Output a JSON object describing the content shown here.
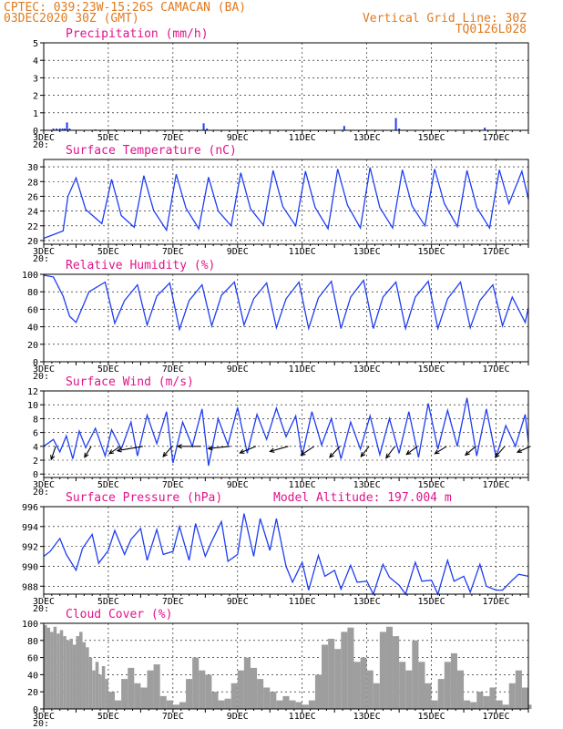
{
  "header": {
    "line1": "CPTEC:   039:23W-15:26S   CAMACAN (BA)",
    "line2": "03DEC2020 30Z (GMT)",
    "right1": "Vertical Grid Line: 30Z",
    "right2": "TQ0126L028"
  },
  "x_axis": {
    "tick_labels": [
      "3DEC",
      "5DEC",
      "7DEC",
      "9DEC",
      "11DEC",
      "13DEC",
      "15DEC",
      "17DEC"
    ],
    "stub_label": "20:",
    "range_days": [
      3.0,
      18.0
    ]
  },
  "chart_data": [
    {
      "id": "precip",
      "type": "bar",
      "title": "Precipitation (mm/h)",
      "ylim": [
        0,
        5
      ],
      "yticks": [
        0,
        1,
        2,
        3,
        4,
        5
      ],
      "grid": true,
      "color": "#1f3ef2",
      "x_unit": "days of December 2020",
      "bars": [
        {
          "x": 3.3,
          "value": 0.1
        },
        {
          "x": 3.4,
          "value": 0.1
        },
        {
          "x": 3.5,
          "value": 0.1
        },
        {
          "x": 3.58,
          "value": 0.1
        },
        {
          "x": 3.65,
          "value": 0.1
        },
        {
          "x": 3.72,
          "value": 0.45
        },
        {
          "x": 3.8,
          "value": 0.1
        },
        {
          "x": 4.6,
          "value": 0.05
        },
        {
          "x": 5.2,
          "value": 0.05
        },
        {
          "x": 7.95,
          "value": 0.4
        },
        {
          "x": 8.05,
          "value": 0.1
        },
        {
          "x": 12.3,
          "value": 0.25
        },
        {
          "x": 13.9,
          "value": 0.7
        },
        {
          "x": 14.0,
          "value": 0.1
        },
        {
          "x": 16.65,
          "value": 0.15
        }
      ]
    },
    {
      "id": "temperature",
      "type": "line",
      "title": "Surface Temperature (nC)",
      "ylim": [
        19.5,
        31
      ],
      "yticks": [
        20,
        22,
        24,
        26,
        28,
        30
      ],
      "grid": true,
      "color": "#1f3ef2",
      "x": [
        3.0,
        3.3,
        3.6,
        3.75,
        4.0,
        4.3,
        4.8,
        5.1,
        5.4,
        5.8,
        6.1,
        6.4,
        6.8,
        7.1,
        7.4,
        7.8,
        8.1,
        8.4,
        8.8,
        9.1,
        9.4,
        9.8,
        10.1,
        10.4,
        10.8,
        11.1,
        11.4,
        11.8,
        12.1,
        12.4,
        12.8,
        13.1,
        13.4,
        13.8,
        14.1,
        14.4,
        14.8,
        15.1,
        15.4,
        15.8,
        16.1,
        16.4,
        16.8,
        17.1,
        17.4,
        17.8,
        18.0
      ],
      "y": [
        20.3,
        20.8,
        21.3,
        26.0,
        28.5,
        24.2,
        22.3,
        28.3,
        23.4,
        21.8,
        28.8,
        24.1,
        21.4,
        29.0,
        24.4,
        21.6,
        28.6,
        24.0,
        22.0,
        29.2,
        24.3,
        22.1,
        29.5,
        24.6,
        22.0,
        29.4,
        24.5,
        21.6,
        29.7,
        24.8,
        21.7,
        29.9,
        24.5,
        21.7,
        29.6,
        24.7,
        22.0,
        29.7,
        25.0,
        21.9,
        29.5,
        24.5,
        21.7,
        29.6,
        25.0,
        29.4,
        25.6
      ]
    },
    {
      "id": "humidity",
      "type": "line",
      "title": "Relative Humidity (%)",
      "ylim": [
        0,
        100
      ],
      "yticks": [
        0,
        20,
        40,
        60,
        80,
        100
      ],
      "grid": true,
      "color": "#1f3ef2",
      "x": [
        3.0,
        3.3,
        3.6,
        3.8,
        4.0,
        4.4,
        4.9,
        5.2,
        5.5,
        5.9,
        6.2,
        6.5,
        6.9,
        7.2,
        7.5,
        7.9,
        8.2,
        8.5,
        8.9,
        9.2,
        9.5,
        9.9,
        10.2,
        10.5,
        10.9,
        11.2,
        11.5,
        11.9,
        12.2,
        12.5,
        12.9,
        13.2,
        13.5,
        13.9,
        14.2,
        14.5,
        14.9,
        15.2,
        15.5,
        15.9,
        16.2,
        16.5,
        16.9,
        17.2,
        17.5,
        17.9,
        18.0
      ],
      "y": [
        99,
        97,
        75,
        52,
        45,
        80,
        91,
        44,
        70,
        88,
        42,
        75,
        90,
        37,
        70,
        88,
        41,
        76,
        91,
        42,
        72,
        90,
        39,
        72,
        91,
        38,
        73,
        92,
        38,
        74,
        93,
        38,
        74,
        91,
        38,
        74,
        92,
        38,
        72,
        91,
        39,
        70,
        88,
        41,
        74,
        45,
        62
      ]
    },
    {
      "id": "wind",
      "type": "line",
      "title": "Surface Wind (m/s)",
      "ylim": [
        -0.5,
        12
      ],
      "yticks": [
        0,
        2,
        4,
        6,
        8,
        10,
        12
      ],
      "grid": true,
      "color": "#1f3ef2",
      "x": [
        3.0,
        3.3,
        3.5,
        3.7,
        3.9,
        4.1,
        4.3,
        4.6,
        4.9,
        5.1,
        5.4,
        5.7,
        5.9,
        6.2,
        6.5,
        6.8,
        7.0,
        7.3,
        7.6,
        7.9,
        8.1,
        8.4,
        8.7,
        9.0,
        9.3,
        9.6,
        9.9,
        10.2,
        10.5,
        10.8,
        11.0,
        11.3,
        11.6,
        11.9,
        12.2,
        12.5,
        12.8,
        13.1,
        13.4,
        13.7,
        14.0,
        14.3,
        14.6,
        14.9,
        15.2,
        15.5,
        15.8,
        16.1,
        16.4,
        16.7,
        17.0,
        17.3,
        17.6,
        17.9,
        18.0
      ],
      "y": [
        4.0,
        5.0,
        3.2,
        5.5,
        2.2,
        6.2,
        3.8,
        6.6,
        2.6,
        6.4,
        3.6,
        7.5,
        2.6,
        8.5,
        4.4,
        9.0,
        1.6,
        7.5,
        4.0,
        9.4,
        1.2,
        8.0,
        4.2,
        9.6,
        3.0,
        8.6,
        5.0,
        9.5,
        5.4,
        8.4,
        2.6,
        9.0,
        4.2,
        8.0,
        2.2,
        7.5,
        3.6,
        8.4,
        2.8,
        8.0,
        3.0,
        9.0,
        2.4,
        10.2,
        3.6,
        9.2,
        4.0,
        11.0,
        2.6,
        9.4,
        2.4,
        7.0,
        4.0,
        8.6,
        4.6
      ],
      "arrows": [
        {
          "x": 3.2,
          "u": -0.6,
          "v": -1.8
        },
        {
          "x": 4.3,
          "u": -0.9,
          "v": -1.5
        },
        {
          "x": 5.2,
          "u": -1.5,
          "v": -1.0
        },
        {
          "x": 5.9,
          "u": -3.5,
          "v": -0.6
        },
        {
          "x": 6.8,
          "u": -1.2,
          "v": -1.4
        },
        {
          "x": 7.7,
          "u": -3.2,
          "v": 0.0
        },
        {
          "x": 8.6,
          "u": -3.0,
          "v": -0.3
        },
        {
          "x": 9.4,
          "u": -2.2,
          "v": -0.9
        },
        {
          "x": 10.4,
          "u": -2.5,
          "v": -0.7
        },
        {
          "x": 11.2,
          "u": -1.8,
          "v": -1.2
        },
        {
          "x": 12.0,
          "u": -1.4,
          "v": -1.5
        },
        {
          "x": 12.9,
          "u": -1.1,
          "v": -1.4
        },
        {
          "x": 13.7,
          "u": -1.2,
          "v": -1.6
        },
        {
          "x": 14.4,
          "u": -1.5,
          "v": -1.1
        },
        {
          "x": 15.3,
          "u": -1.6,
          "v": -1.0
        },
        {
          "x": 16.2,
          "u": -1.4,
          "v": -1.2
        },
        {
          "x": 17.1,
          "u": -1.3,
          "v": -1.5
        },
        {
          "x": 17.9,
          "u": -1.8,
          "v": -0.8
        }
      ]
    },
    {
      "id": "pressure",
      "type": "line",
      "title": "Surface Pressure (hPa)",
      "subtitle": "Model Altitude: 197.004 m",
      "ylim": [
        987.2,
        996
      ],
      "yticks": [
        988,
        990,
        992,
        994,
        996
      ],
      "grid": true,
      "color": "#1f3ef2",
      "x": [
        3.0,
        3.2,
        3.5,
        3.7,
        4.0,
        4.2,
        4.5,
        4.7,
        5.0,
        5.2,
        5.5,
        5.7,
        6.0,
        6.2,
        6.5,
        6.7,
        7.0,
        7.2,
        7.5,
        7.7,
        8.0,
        8.2,
        8.5,
        8.7,
        9.0,
        9.2,
        9.5,
        9.7,
        10.0,
        10.2,
        10.5,
        10.7,
        11.0,
        11.2,
        11.5,
        11.7,
        12.0,
        12.2,
        12.5,
        12.7,
        13.0,
        13.2,
        13.5,
        13.7,
        14.0,
        14.2,
        14.5,
        14.7,
        15.0,
        15.2,
        15.5,
        15.7,
        16.0,
        16.2,
        16.5,
        16.7,
        17.0,
        17.2,
        17.5,
        17.7,
        18.0
      ],
      "y": [
        991.0,
        991.5,
        992.8,
        991.2,
        989.6,
        991.8,
        993.2,
        990.3,
        991.6,
        993.6,
        991.2,
        992.7,
        993.8,
        990.6,
        993.7,
        991.2,
        991.5,
        994.0,
        990.6,
        994.3,
        991.0,
        992.5,
        994.5,
        990.5,
        991.2,
        995.3,
        991.0,
        994.8,
        991.6,
        994.8,
        990.0,
        988.4,
        990.4,
        987.6,
        991.1,
        989.0,
        989.6,
        987.7,
        990.1,
        988.4,
        988.5,
        987.2,
        990.2,
        988.9,
        988.1,
        987.2,
        990.4,
        988.5,
        988.6,
        987.2,
        990.6,
        988.5,
        989.0,
        987.4,
        990.2,
        988.0,
        987.6,
        987.6,
        988.6,
        989.2,
        989.0
      ]
    },
    {
      "id": "cloud",
      "type": "area",
      "title": "Cloud Cover (%)",
      "ylim": [
        0,
        100
      ],
      "yticks": [
        0,
        20,
        40,
        60,
        80,
        100
      ],
      "grid": true,
      "color": "#9e9e9e",
      "x": [
        3.0,
        3.1,
        3.2,
        3.3,
        3.4,
        3.5,
        3.6,
        3.7,
        3.8,
        3.9,
        4.0,
        4.1,
        4.2,
        4.3,
        4.4,
        4.5,
        4.6,
        4.7,
        4.8,
        4.9,
        5.0,
        5.2,
        5.4,
        5.6,
        5.8,
        6.0,
        6.2,
        6.4,
        6.6,
        6.8,
        7.0,
        7.2,
        7.4,
        7.6,
        7.8,
        8.0,
        8.2,
        8.4,
        8.6,
        8.8,
        9.0,
        9.2,
        9.4,
        9.6,
        9.8,
        10.0,
        10.2,
        10.4,
        10.6,
        10.8,
        11.0,
        11.2,
        11.4,
        11.6,
        11.8,
        12.0,
        12.2,
        12.4,
        12.6,
        12.8,
        13.0,
        13.2,
        13.4,
        13.6,
        13.8,
        14.0,
        14.2,
        14.4,
        14.6,
        14.8,
        15.0,
        15.2,
        15.4,
        15.6,
        15.8,
        16.0,
        16.2,
        16.4,
        16.6,
        16.8,
        17.0,
        17.2,
        17.4,
        17.6,
        17.8,
        18.0
      ],
      "y": [
        98,
        95,
        90,
        96,
        88,
        92,
        85,
        80,
        82,
        75,
        85,
        90,
        78,
        72,
        60,
        45,
        55,
        40,
        50,
        35,
        20,
        10,
        35,
        48,
        30,
        25,
        45,
        52,
        15,
        10,
        5,
        8,
        35,
        60,
        45,
        40,
        20,
        10,
        12,
        30,
        45,
        60,
        48,
        35,
        25,
        20,
        10,
        15,
        10,
        8,
        5,
        10,
        40,
        75,
        82,
        70,
        90,
        95,
        55,
        60,
        45,
        30,
        90,
        96,
        85,
        55,
        45,
        80,
        55,
        30,
        10,
        35,
        55,
        65,
        45,
        10,
        8,
        20,
        15,
        25,
        10,
        5,
        30,
        45,
        25,
        5
      ]
    }
  ]
}
